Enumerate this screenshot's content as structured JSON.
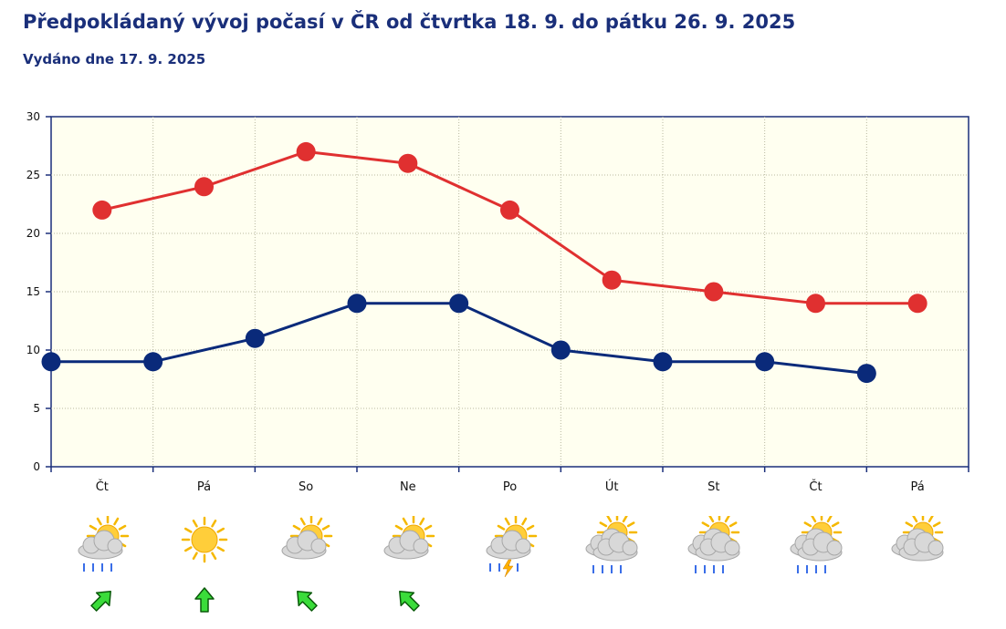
{
  "header": {
    "title": "Předpokládaný vývoj počasí v ČR od čtvrtka 18. 9. do pátku 26. 9. 2025",
    "subtitle": "Vydáno dne 17. 9. 2025"
  },
  "chart_data": {
    "type": "line",
    "categories": [
      "Čt",
      "Pá",
      "So",
      "Ne",
      "Po",
      "Út",
      "St",
      "Čt",
      "Pá"
    ],
    "ylim": [
      0,
      30
    ],
    "yticks": [
      0,
      5,
      10,
      15,
      20,
      25,
      30
    ],
    "grid": true,
    "series": [
      {
        "color": "#e03030",
        "x": [
          0.5,
          1.5,
          2.5,
          3.5,
          4.5,
          5.5,
          6.5,
          7.5,
          8.5
        ],
        "values": [
          22,
          24,
          27,
          26,
          22,
          16,
          15,
          14,
          14
        ]
      },
      {
        "color": "#0a2a7a",
        "x": [
          0,
          1,
          2,
          3,
          4,
          5,
          6,
          7,
          8
        ],
        "values": [
          9,
          9,
          11,
          14,
          14,
          10,
          9,
          9,
          8
        ]
      }
    ]
  },
  "forecast": [
    {
      "day": "Čt",
      "icon": "sun-cloud-rain-icon",
      "wind": "wind-northeast-arrow-icon"
    },
    {
      "day": "Pá",
      "icon": "sun-icon",
      "wind": "wind-north-arrow-icon"
    },
    {
      "day": "So",
      "icon": "sun-cloud-icon",
      "wind": "wind-northwest-arrow-icon"
    },
    {
      "day": "Ne",
      "icon": "sun-cloud-icon",
      "wind": "wind-northwest-arrow-icon"
    },
    {
      "day": "Po",
      "icon": "sun-cloud-storm-icon",
      "wind": ""
    },
    {
      "day": "Út",
      "icon": "cloud-sun-rain-icon",
      "wind": ""
    },
    {
      "day": "St",
      "icon": "cloud-sun-rain-icon",
      "wind": ""
    },
    {
      "day": "Čt",
      "icon": "cloud-sun-rain-icon",
      "wind": ""
    },
    {
      "day": "Pá",
      "icon": "cloud-sun-icon",
      "wind": ""
    }
  ]
}
